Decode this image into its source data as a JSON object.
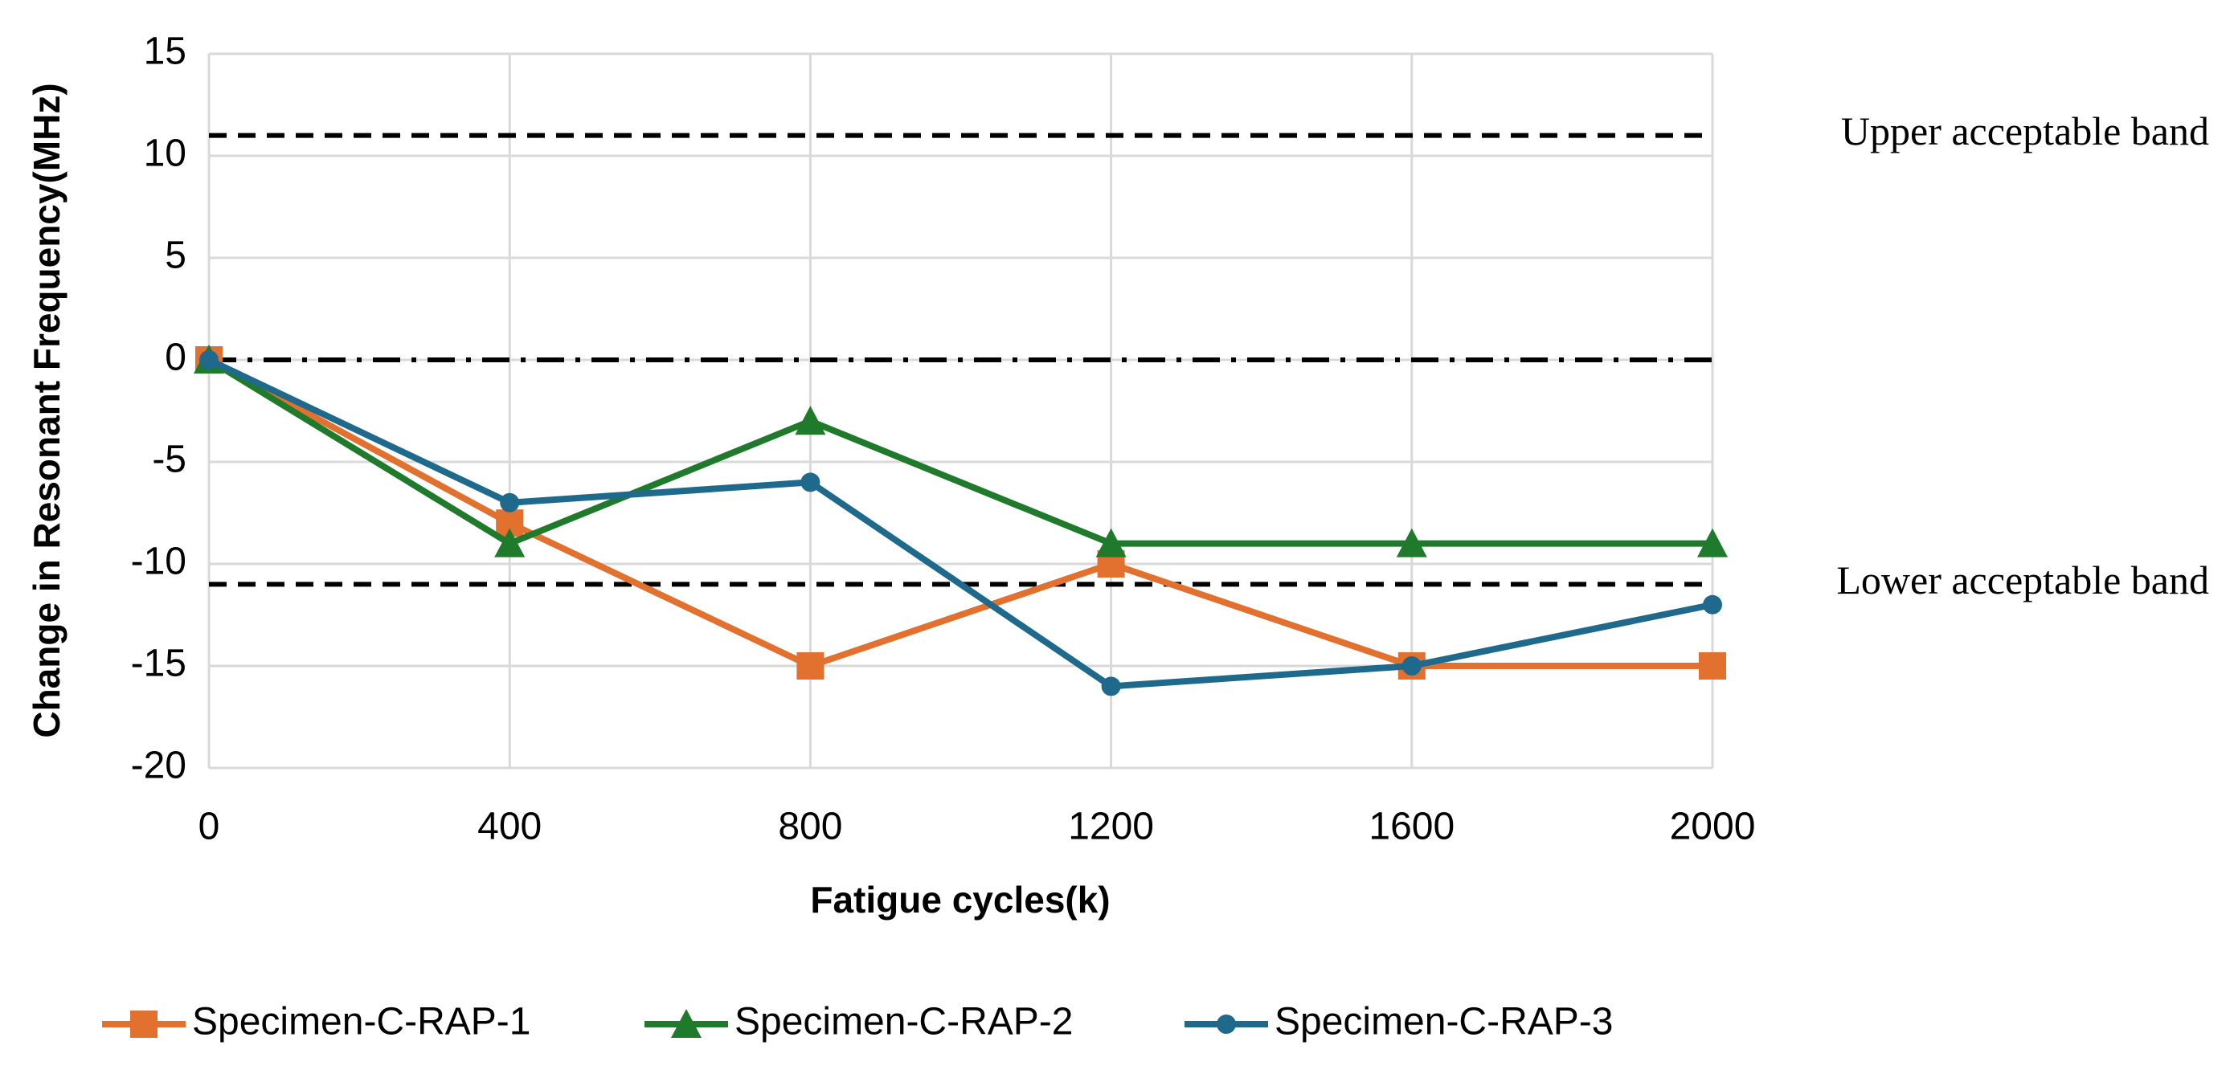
{
  "chart_data": {
    "type": "line",
    "x_label": "Fatigue cycles(k)",
    "y_label": "Change in Resonant Frequency(MHz)",
    "x": [
      0,
      400,
      800,
      1200,
      1600,
      2000
    ],
    "series": [
      {
        "name": "Specimen-C-RAP-1",
        "color": "#e2702f",
        "marker": "square",
        "values": [
          0,
          -8,
          -15,
          -10,
          -15,
          -15
        ]
      },
      {
        "name": "Specimen-C-RAP-2",
        "color": "#1f7a2c",
        "marker": "triangle",
        "values": [
          0,
          -9,
          -3,
          -9,
          -9,
          -9
        ]
      },
      {
        "name": "Specimen-C-RAP-3",
        "color": "#1f6a8c",
        "marker": "circle",
        "values": [
          0,
          -7,
          -6,
          -16,
          -15,
          -12
        ]
      }
    ],
    "reference_lines": [
      {
        "value": 11,
        "style": "dashed",
        "label": "Upper acceptable band"
      },
      {
        "value": -11,
        "style": "dashed",
        "label": "Lower acceptable band"
      },
      {
        "value": 0,
        "style": "dashdot"
      }
    ],
    "xlim": [
      0,
      2000
    ],
    "xticks": [
      0,
      400,
      800,
      1200,
      1600,
      2000
    ],
    "ylim": [
      -20,
      15
    ],
    "yticks": [
      -20,
      -15,
      -10,
      -5,
      0,
      5,
      10,
      15
    ],
    "grid": true,
    "legend": "bottom"
  }
}
